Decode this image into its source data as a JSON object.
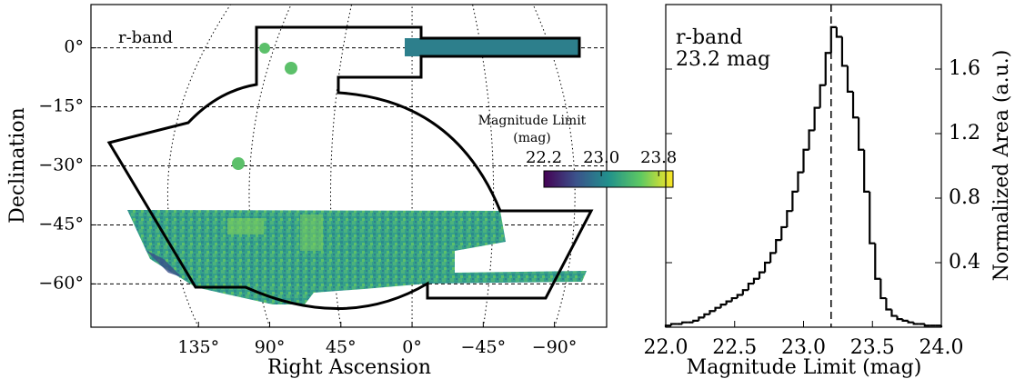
{
  "chart_data": [
    {
      "type": "map",
      "annotations": [
        "r-band"
      ],
      "xlabel": "Right Ascension",
      "ylabel": "Declination",
      "xlim": [
        203,
        -123
      ],
      "ylim": [
        -71,
        11
      ],
      "xticks": [
        {
          "value": 135,
          "label": "135°"
        },
        {
          "value": 90,
          "label": "90°"
        },
        {
          "value": 45,
          "label": "45°"
        },
        {
          "value": 0,
          "label": "0°"
        },
        {
          "value": -45,
          "label": "−45°"
        },
        {
          "value": -90,
          "label": "−90°"
        }
      ],
      "yticks": [
        {
          "value": 0,
          "label": "0°"
        },
        {
          "value": -15,
          "label": "−15°"
        },
        {
          "value": -30,
          "label": "−30°"
        },
        {
          "value": -45,
          "label": "−45°"
        },
        {
          "value": -60,
          "label": "−60°"
        }
      ],
      "grid": true,
      "colorbar": {
        "label": [
          "Magnitude Limit",
          "(mag)"
        ],
        "lim": [
          22.2,
          24.0
        ],
        "ticks": [
          22.2,
          {
            "value": 23.0,
            "label": "23.0"
          },
          23.8
        ]
      }
    },
    {
      "type": "histogram",
      "annotations": [
        "r-band",
        "23.2 mag"
      ],
      "xlabel": "Magnitude Limit (mag)",
      "ylabel": "Normalized Area (a.u.)",
      "color": "#000000",
      "bins": [
        22,
        22.04,
        22.08,
        22.12,
        22.16,
        22.2,
        22.24,
        22.28,
        22.32,
        22.36,
        22.4,
        22.44,
        22.48,
        22.52,
        22.56,
        22.6,
        22.64,
        22.68,
        22.72,
        22.76,
        22.8,
        22.84,
        22.88,
        22.92,
        22.96,
        23,
        23.04,
        23.08,
        23.12,
        23.16,
        23.2,
        23.24,
        23.28,
        23.32,
        23.36,
        23.4,
        23.44,
        23.48,
        23.52,
        23.56,
        23.6,
        23.64,
        23.68,
        23.72,
        23.76,
        23.8,
        23.84,
        23.88,
        23.92,
        23.96,
        24
      ],
      "values": [
        0.01,
        0.02,
        0.02,
        0.03,
        0.03,
        0.04,
        0.06,
        0.08,
        0.1,
        0.12,
        0.14,
        0.16,
        0.18,
        0.2,
        0.23,
        0.27,
        0.3,
        0.34,
        0.4,
        0.46,
        0.54,
        0.62,
        0.72,
        0.84,
        0.96,
        1.1,
        1.22,
        1.36,
        1.5,
        1.7,
        1.86,
        1.8,
        1.62,
        1.46,
        1.3,
        1.1,
        0.84,
        0.52,
        0.3,
        0.18,
        0.11,
        0.07,
        0.05,
        0.04,
        0.03,
        0.02,
        0.02,
        0.01,
        0.01,
        0.01
      ],
      "vline": 23.2,
      "xlim": [
        22,
        24
      ],
      "ylim": [
        0,
        2
      ],
      "xticks": [
        {
          "value": 22.0,
          "label": "22.0"
        },
        22.5,
        {
          "value": 23.0,
          "label": "23.0"
        },
        23.5,
        {
          "value": 24.0,
          "label": "24.0"
        }
      ],
      "yticks": [
        0.4,
        0.8,
        1.2,
        1.6
      ]
    }
  ]
}
